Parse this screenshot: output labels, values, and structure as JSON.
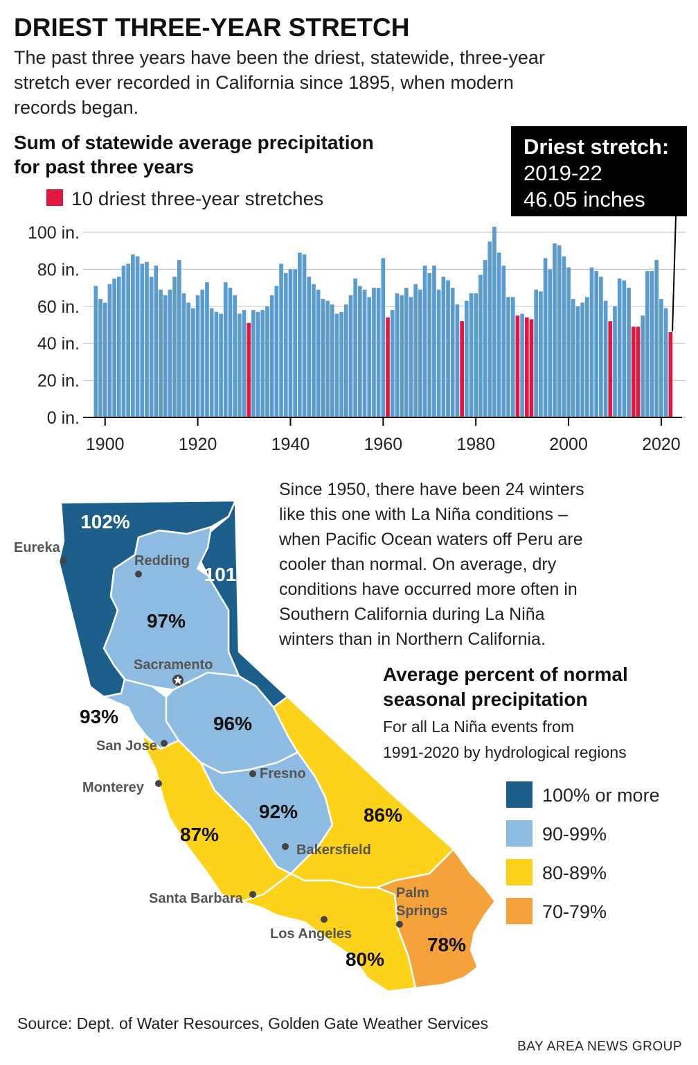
{
  "header": {
    "title": "DRIEST THREE-YEAR STRETCH",
    "intro_lines": [
      "The past three years have been the driest, statewide, three-year",
      "stretch ever recorded in California since 1895, when modern",
      "records began."
    ]
  },
  "chart_data": {
    "type": "bar",
    "title_lines": [
      "Sum of statewide average precipitation",
      "for past three years"
    ],
    "legend": [
      {
        "name": "10 driest three-year stretches",
        "color": "#e0173f"
      }
    ],
    "x": [
      1898,
      1899,
      1900,
      1901,
      1902,
      1903,
      1904,
      1905,
      1906,
      1907,
      1908,
      1909,
      1910,
      1911,
      1912,
      1913,
      1914,
      1915,
      1916,
      1917,
      1918,
      1919,
      1920,
      1921,
      1922,
      1923,
      1924,
      1925,
      1926,
      1927,
      1928,
      1929,
      1930,
      1931,
      1932,
      1933,
      1934,
      1935,
      1936,
      1937,
      1938,
      1939,
      1940,
      1941,
      1942,
      1943,
      1944,
      1945,
      1946,
      1947,
      1948,
      1949,
      1950,
      1951,
      1952,
      1953,
      1954,
      1955,
      1956,
      1957,
      1958,
      1959,
      1960,
      1961,
      1962,
      1963,
      1964,
      1965,
      1966,
      1967,
      1968,
      1969,
      1970,
      1971,
      1972,
      1973,
      1974,
      1975,
      1976,
      1977,
      1978,
      1979,
      1980,
      1981,
      1982,
      1983,
      1984,
      1985,
      1986,
      1987,
      1988,
      1989,
      1990,
      1991,
      1992,
      1993,
      1994,
      1995,
      1996,
      1997,
      1998,
      1999,
      2000,
      2001,
      2002,
      2003,
      2004,
      2005,
      2006,
      2007,
      2008,
      2009,
      2010,
      2011,
      2012,
      2013,
      2014,
      2015,
      2016,
      2017,
      2018,
      2019,
      2020,
      2021,
      2022
    ],
    "values": [
      71,
      64,
      62,
      72,
      75,
      76,
      82,
      83,
      88,
      87,
      83,
      84,
      76,
      82,
      69,
      66,
      69,
      76,
      85,
      67,
      62,
      59,
      66,
      69,
      73,
      59,
      57,
      56,
      73,
      70,
      66,
      56,
      58,
      51,
      58,
      57,
      58,
      60,
      66,
      71,
      83,
      78,
      80,
      80,
      89,
      88,
      76,
      72,
      69,
      64,
      63,
      61,
      56,
      57,
      61,
      66,
      75,
      71,
      69,
      65,
      70,
      70,
      86,
      54,
      58,
      67,
      66,
      70,
      65,
      72,
      69,
      82,
      78,
      82,
      69,
      76,
      74,
      70,
      61,
      52,
      63,
      67,
      67,
      77,
      85,
      95,
      103,
      89,
      82,
      65,
      65,
      55,
      56,
      54,
      53,
      69,
      68,
      86,
      80,
      94,
      93,
      87,
      81,
      64,
      60,
      62,
      65,
      81,
      79,
      76,
      63,
      52,
      60,
      75,
      74,
      70,
      49,
      49,
      55,
      79,
      79,
      85,
      64,
      59,
      46.05
    ],
    "colors": [
      "#5a9bd0",
      "#5a9bd0",
      "#5a9bd0",
      "#5a9bd0",
      "#5a9bd0",
      "#5a9bd0",
      "#5a9bd0",
      "#5a9bd0",
      "#5a9bd0",
      "#5a9bd0",
      "#5a9bd0",
      "#5a9bd0",
      "#5a9bd0",
      "#5a9bd0",
      "#5a9bd0",
      "#5a9bd0",
      "#5a9bd0",
      "#5a9bd0",
      "#5a9bd0",
      "#5a9bd0",
      "#5a9bd0",
      "#5a9bd0",
      "#5a9bd0",
      "#5a9bd0",
      "#5a9bd0",
      "#5a9bd0",
      "#5a9bd0",
      "#5a9bd0",
      "#5a9bd0",
      "#5a9bd0",
      "#5a9bd0",
      "#5a9bd0",
      "#5a9bd0",
      "#e0173f",
      "#5a9bd0",
      "#5a9bd0",
      "#5a9bd0",
      "#5a9bd0",
      "#5a9bd0",
      "#5a9bd0",
      "#5a9bd0",
      "#5a9bd0",
      "#5a9bd0",
      "#5a9bd0",
      "#5a9bd0",
      "#5a9bd0",
      "#5a9bd0",
      "#5a9bd0",
      "#5a9bd0",
      "#5a9bd0",
      "#5a9bd0",
      "#5a9bd0",
      "#5a9bd0",
      "#5a9bd0",
      "#5a9bd0",
      "#5a9bd0",
      "#5a9bd0",
      "#5a9bd0",
      "#5a9bd0",
      "#5a9bd0",
      "#5a9bd0",
      "#5a9bd0",
      "#5a9bd0",
      "#e0173f",
      "#5a9bd0",
      "#5a9bd0",
      "#5a9bd0",
      "#5a9bd0",
      "#5a9bd0",
      "#5a9bd0",
      "#5a9bd0",
      "#5a9bd0",
      "#5a9bd0",
      "#5a9bd0",
      "#5a9bd0",
      "#5a9bd0",
      "#5a9bd0",
      "#5a9bd0",
      "#5a9bd0",
      "#e0173f",
      "#5a9bd0",
      "#5a9bd0",
      "#5a9bd0",
      "#5a9bd0",
      "#5a9bd0",
      "#5a9bd0",
      "#5a9bd0",
      "#5a9bd0",
      "#5a9bd0",
      "#5a9bd0",
      "#5a9bd0",
      "#e0173f",
      "#5a9bd0",
      "#e0173f",
      "#e0173f",
      "#5a9bd0",
      "#5a9bd0",
      "#5a9bd0",
      "#5a9bd0",
      "#5a9bd0",
      "#5a9bd0",
      "#5a9bd0",
      "#5a9bd0",
      "#5a9bd0",
      "#5a9bd0",
      "#5a9bd0",
      "#5a9bd0",
      "#5a9bd0",
      "#5a9bd0",
      "#5a9bd0",
      "#5a9bd0",
      "#e0173f",
      "#5a9bd0",
      "#5a9bd0",
      "#5a9bd0",
      "#5a9bd0",
      "#e0173f",
      "#e0173f",
      "#5a9bd0",
      "#5a9bd0",
      "#5a9bd0",
      "#5a9bd0",
      "#5a9bd0",
      "#5a9bd0",
      "#e0173f"
    ],
    "xlim": [
      1897.5,
      2023
    ],
    "xticks": [
      1900,
      1920,
      1940,
      1960,
      1980,
      2000,
      2020
    ],
    "ylim": [
      0,
      105
    ],
    "yticks": [
      {
        "value": 0,
        "label": "0 in."
      },
      {
        "value": 20,
        "label": "20 in."
      },
      {
        "value": 40,
        "label": "40 in."
      },
      {
        "value": 60,
        "label": "60 in."
      },
      {
        "value": 80,
        "label": "80 in."
      },
      {
        "value": 100,
        "label": "100 in."
      }
    ],
    "grid": true,
    "annotation": {
      "lines": [
        "Driest stretch:",
        "2019-22",
        "46.05 inches"
      ]
    }
  },
  "body": {
    "lines": [
      "Since 1950, there have been 24 winters",
      "like this one with La Niña conditions –",
      "when Pacific Ocean waters off Peru are",
      "cooler than normal. On average, dry",
      "conditions have occurred more often in",
      "Southern California during La Niña",
      "winters than in Northern California."
    ]
  },
  "map": {
    "title_lines": [
      "Average percent of normal",
      "seasonal precipitation"
    ],
    "subtitle_lines": [
      "For all La Niña events from",
      "1991-2020 by hydrological regions"
    ],
    "legend": [
      {
        "label": "100% or more",
        "color": "#1d5f8b"
      },
      {
        "label": "90-99%",
        "color": "#8dbbe1"
      },
      {
        "label": "80-89%",
        "color": "#fcd21b"
      },
      {
        "label": "70-79%",
        "color": "#f6a23a"
      }
    ],
    "regions": [
      "102%",
      "101",
      "97%",
      "93%",
      "96%",
      "92%",
      "87%",
      "86%",
      "80%",
      "78%"
    ],
    "cities": [
      "Eureka",
      "Redding",
      "Sacramento",
      "San Jose",
      "Monterey",
      "Fresno",
      "Bakersfield",
      "Santa Barbara",
      "Los Angeles",
      {
        "lines": [
          "Palm",
          "Springs"
        ]
      }
    ]
  },
  "footer": {
    "source": "Source: Dept. of Water Resources, Golden Gate Weather Services",
    "credit": "BAY AREA NEWS GROUP"
  }
}
